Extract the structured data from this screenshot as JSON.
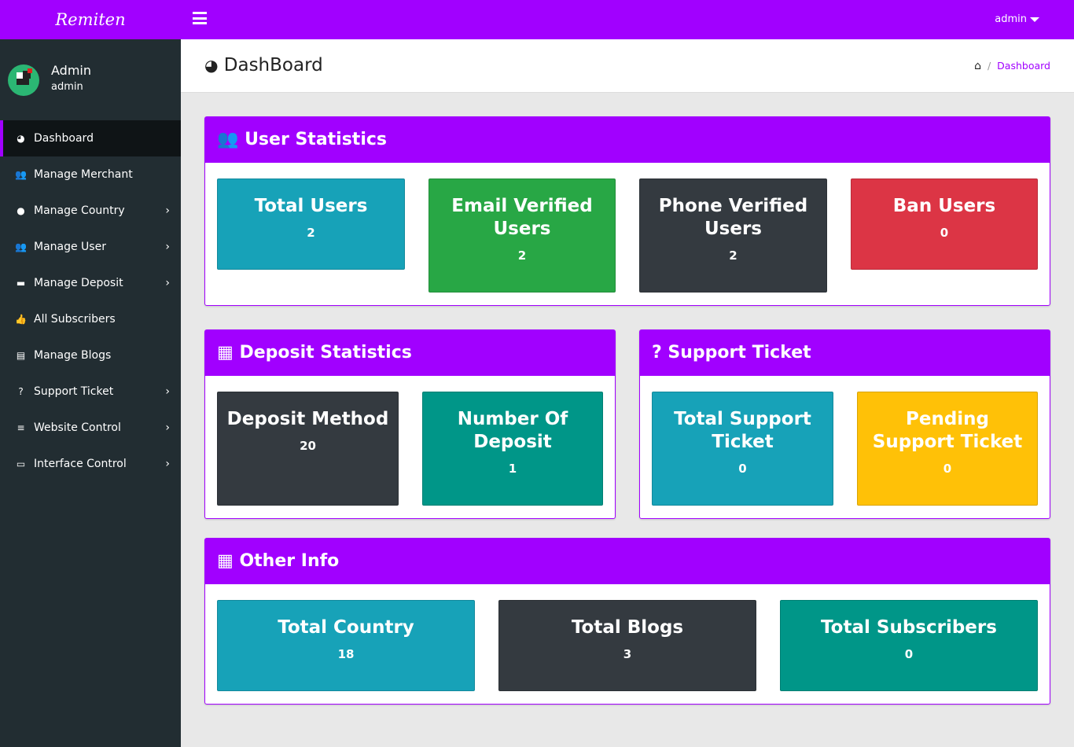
{
  "brand": "Remiten",
  "topbar": {
    "user": "admin"
  },
  "profile": {
    "name": "Admin",
    "role": "admin"
  },
  "sidebar": {
    "items": [
      {
        "label": "Dashboard",
        "icon": "dashboard-icon",
        "glyph": "◕",
        "chevron": false
      },
      {
        "label": "Manage Merchant",
        "icon": "users-icon",
        "glyph": "👥",
        "chevron": false
      },
      {
        "label": "Manage Country",
        "icon": "globe-icon",
        "glyph": "●",
        "chevron": true
      },
      {
        "label": "Manage User",
        "icon": "users-icon",
        "glyph": "👥",
        "chevron": true
      },
      {
        "label": "Manage Deposit",
        "icon": "credit-card-icon",
        "glyph": "▬",
        "chevron": true
      },
      {
        "label": "All Subscribers",
        "icon": "thumbs-up-icon",
        "glyph": "👍",
        "chevron": false
      },
      {
        "label": "Manage Blogs",
        "icon": "newspaper-icon",
        "glyph": "▤",
        "chevron": false
      },
      {
        "label": "Support Ticket",
        "icon": "question-circle-icon",
        "glyph": "?",
        "chevron": true
      },
      {
        "label": "Website Control",
        "icon": "bars-icon",
        "glyph": "≡",
        "chevron": true
      },
      {
        "label": "Interface Control",
        "icon": "desktop-icon",
        "glyph": "▭",
        "chevron": true
      }
    ]
  },
  "header": {
    "title": "DashBoard",
    "breadcrumb": "Dashboard"
  },
  "colors": {
    "accent": "#a100ff",
    "info": "#17a2b8",
    "success": "#28a745",
    "dark": "#343a40",
    "danger": "#dc3545",
    "teal": "#009688",
    "warning": "#ffc107"
  },
  "sections": {
    "user": {
      "title": "User Statistics",
      "cards": [
        {
          "label": "Total Users",
          "value": "2"
        },
        {
          "label": "Email Verified Users",
          "value": "2"
        },
        {
          "label": "Phone Verified Users",
          "value": "2"
        },
        {
          "label": "Ban Users",
          "value": "0"
        }
      ]
    },
    "deposit": {
      "title": "Deposit Statistics",
      "cards": [
        {
          "label": "Deposit Method",
          "value": "20"
        },
        {
          "label": "Number Of Deposit",
          "value": "1"
        }
      ]
    },
    "support": {
      "title": "? Support Ticket",
      "cards": [
        {
          "label": "Total Support Ticket",
          "value": "0"
        },
        {
          "label": "Pending Support Ticket",
          "value": "0"
        }
      ]
    },
    "other": {
      "title": "Other Info",
      "cards": [
        {
          "label": "Total Country",
          "value": "18"
        },
        {
          "label": "Total Blogs",
          "value": "3"
        },
        {
          "label": "Total Subscribers",
          "value": "0"
        }
      ]
    }
  }
}
